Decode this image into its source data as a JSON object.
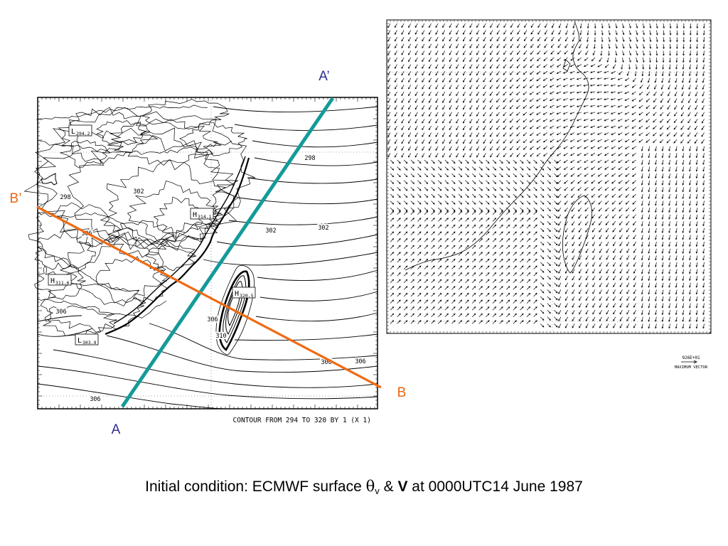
{
  "left_panel": {
    "contour_footer": "CONTOUR FROM 294 TO 320 BY 1 (X 1)",
    "contour_labels": [
      "298",
      "298",
      "302",
      "302",
      "302",
      "306",
      "306",
      "306",
      "306",
      "306",
      "306",
      "310"
    ],
    "extrema_boxes": [
      {
        "letter": "L",
        "value": "294.2"
      },
      {
        "letter": "H",
        "value": "314.1"
      },
      {
        "letter": "H",
        "value": "311.6"
      },
      {
        "letter": "H",
        "value": "320.5"
      },
      {
        "letter": "L",
        "value": "303.9"
      }
    ]
  },
  "cross_sections": [
    {
      "start": "A",
      "end": "A’",
      "color": "#149a9a"
    },
    {
      "start": "B’",
      "end": "B",
      "color": "#f06a14"
    }
  ],
  "right_panel": {
    "vector_scale_value": "926E+01",
    "vector_scale_label": "MAXIMUM VECTOR"
  },
  "caption": {
    "prefix": "Initial condition: ECMWF surface ",
    "theta": "θ",
    "theta_sub": "v",
    "amp": " & ",
    "bold_v": "V",
    "suffix": " at 0000UTC14 June 1987"
  },
  "colors": {
    "teal_line": "#149a9a",
    "orange_line": "#f06a14",
    "label_blue": "#2b2b8f",
    "label_orange": "#e8650f"
  }
}
